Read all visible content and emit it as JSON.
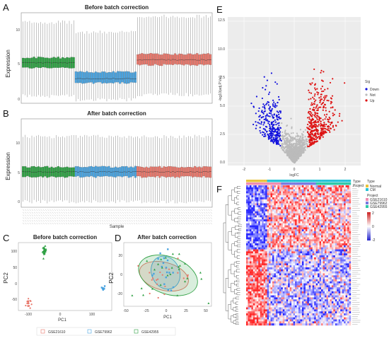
{
  "panels": {
    "A": {
      "label": "A",
      "title": "Before batch correction",
      "ylabel": "Expression",
      "yticks": [
        "10",
        "5",
        "0"
      ]
    },
    "B": {
      "label": "B",
      "title": "After batch correction",
      "ylabel": "Expression",
      "xlabel": "Sample",
      "yticks": [
        "10",
        "5",
        "0"
      ]
    },
    "C": {
      "label": "C",
      "title": "Before batch correction",
      "xlabel": "PC1",
      "ylabel": "PC2",
      "xticks": [
        "-100",
        "0",
        "100"
      ],
      "yticks": [
        "100",
        "50",
        "0",
        "-50"
      ]
    },
    "D": {
      "label": "D",
      "title": "After batch correction",
      "xlabel": "PC1",
      "ylabel": "PC2",
      "xticks": [
        "-50",
        "-25",
        "0",
        "25",
        "50"
      ],
      "yticks": [
        "20",
        "0",
        "-20"
      ]
    },
    "E": {
      "label": "E",
      "xlabel": "logFC",
      "ylabel": "-log10(adj.P.Val)",
      "yticks": [
        "12.5",
        "10.0",
        "7.5",
        "5.0",
        "2.5",
        "0.0"
      ],
      "xticks": [
        "-2",
        "-1",
        "0",
        "1",
        "2"
      ],
      "legend_title": "Sig",
      "legend": [
        "Down",
        "Not",
        "Up"
      ]
    },
    "F": {
      "label": "F",
      "ann1": "Type",
      "ann2": "Project",
      "type_legend": [
        "Normal",
        "CM"
      ],
      "project_legend": [
        "GSE21610",
        "GSE79962",
        "GSE42955"
      ]
    }
  },
  "pca_legend": [
    "GSE21610",
    "GSE79962",
    "GSE42955"
  ],
  "colors": {
    "red": "#e8776b",
    "green": "#2ea043",
    "blue": "#4aa3df",
    "up": "#dd1111",
    "down": "#1111dd",
    "not": "#bbbbbb"
  },
  "chart_data": [
    {
      "type": "box",
      "panel": "A",
      "title": "Before batch correction",
      "ylabel": "Expression",
      "ylim": [
        0,
        12.5
      ],
      "series": [
        {
          "name": "GSE42955",
          "median": 5.6,
          "q1": 4.9,
          "q3": 6.3,
          "min": 1.0,
          "max": 11.2
        },
        {
          "name": "GSE79962",
          "median": 3.4,
          "q1": 2.8,
          "q3": 4.3,
          "min": 0.5,
          "max": 9.8
        },
        {
          "name": "GSE21610",
          "median": 6.0,
          "q1": 5.3,
          "q3": 6.8,
          "min": 1.2,
          "max": 12.0
        }
      ]
    },
    {
      "type": "box",
      "panel": "B",
      "title": "After batch correction",
      "ylabel": "Expression",
      "xlabel": "Sample",
      "ylim": [
        0,
        12.5
      ],
      "series": [
        {
          "name": "GSE42955",
          "median": 5.0,
          "q1": 4.3,
          "q3": 5.7,
          "min": 0.8,
          "max": 10.0
        },
        {
          "name": "GSE79962",
          "median": 5.0,
          "q1": 4.3,
          "q3": 5.7,
          "min": 0.8,
          "max": 10.0
        },
        {
          "name": "GSE21610",
          "median": 5.0,
          "q1": 4.3,
          "q3": 5.7,
          "min": 0.8,
          "max": 10.0
        }
      ]
    },
    {
      "type": "scatter",
      "panel": "C",
      "title": "Before batch correction",
      "xlabel": "PC1",
      "ylabel": "PC2",
      "xlim": [
        -130,
        175
      ],
      "ylim": [
        -90,
        125
      ],
      "series": [
        {
          "name": "GSE21610",
          "center": [
            -98,
            -68
          ],
          "spread": [
            4,
            9
          ]
        },
        {
          "name": "GSE79962",
          "center": [
            148,
            -18
          ],
          "spread": [
            2,
            3
          ]
        },
        {
          "name": "GSE42955",
          "center": [
            -45,
            98
          ],
          "spread": [
            3,
            7
          ]
        }
      ]
    },
    {
      "type": "scatter",
      "panel": "D",
      "title": "After batch correction",
      "xlabel": "PC1",
      "ylabel": "PC2",
      "xlim": [
        -52,
        55
      ],
      "ylim": [
        -35,
        35
      ],
      "series": [
        {
          "name": "GSE21610",
          "center": [
            -3,
            -2
          ],
          "spread": [
            18,
            9
          ]
        },
        {
          "name": "GSE79962",
          "center": [
            -1,
            2
          ],
          "spread": [
            10,
            11
          ]
        },
        {
          "name": "GSE42955",
          "center": [
            2,
            -1
          ],
          "spread": [
            22,
            12
          ]
        }
      ]
    },
    {
      "type": "scatter",
      "panel": "E",
      "xlabel": "logFC",
      "ylabel": "-log10(adj.P.Val)",
      "xlim": [
        -2.5,
        2.5
      ],
      "ylim": [
        0,
        13
      ],
      "series": [
        {
          "name": "Down"
        },
        {
          "name": "Not"
        },
        {
          "name": "Up"
        }
      ]
    },
    {
      "type": "heatmap",
      "panel": "F",
      "rows": 70,
      "cols": 60,
      "colorscale": [
        "#2222cc",
        "#ffffff",
        "#cc2222"
      ],
      "legend_ticks": [
        "2",
        "0",
        "-2"
      ]
    }
  ]
}
